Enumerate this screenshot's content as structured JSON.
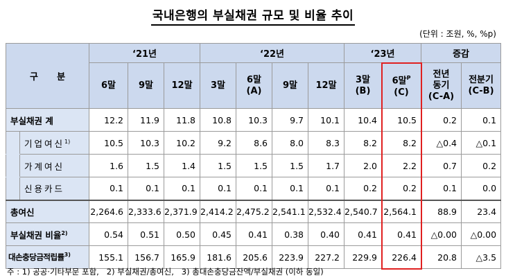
{
  "title": "국내은행의 부실채권 규모 및 비율 추이",
  "unit": "(단위 : 조원, %, %p)",
  "header": {
    "category": "구      분",
    "groups": [
      "‘21년",
      "‘22년",
      "‘23년",
      "증감"
    ],
    "cols": [
      {
        "l1": "6말",
        "l2": ""
      },
      {
        "l1": "9말",
        "l2": ""
      },
      {
        "l1": "12말",
        "l2": ""
      },
      {
        "l1": "3말",
        "l2": ""
      },
      {
        "l1": "6말",
        "l2": "(A)"
      },
      {
        "l1": "9말",
        "l2": ""
      },
      {
        "l1": "12말",
        "l2": ""
      },
      {
        "l1": "3말",
        "l2": "(B)"
      },
      {
        "l1": "6말",
        "sup": "P",
        "l2": "(C)"
      },
      {
        "l1": "전년",
        "l2": "동기",
        "l3": "(C-A)"
      },
      {
        "l1": "전분기",
        "l2": "(C-B)"
      }
    ]
  },
  "rows": [
    {
      "label": "부실채권 계",
      "sup": "",
      "values": [
        "12.2",
        "11.9",
        "11.8",
        "10.8",
        "10.3",
        "9.7",
        "10.1",
        "10.4",
        "10.5",
        "0.2",
        "0.1"
      ]
    },
    {
      "label": "기업여신",
      "sup": "1)",
      "values": [
        "10.5",
        "10.3",
        "10.2",
        "9.2",
        "8.6",
        "8.0",
        "8.3",
        "8.2",
        "8.2",
        "△0.4",
        "△0.1"
      ]
    },
    {
      "label": "가계여신",
      "sup": "",
      "values": [
        "1.6",
        "1.5",
        "1.4",
        "1.5",
        "1.5",
        "1.5",
        "1.7",
        "2.0",
        "2.2",
        "0.7",
        "0.2"
      ]
    },
    {
      "label": "신용카드",
      "sup": "",
      "values": [
        "0.1",
        "0.1",
        "0.1",
        "0.1",
        "0.1",
        "0.1",
        "0.1",
        "0.2",
        "0.2",
        "0.1",
        "0.0"
      ]
    },
    {
      "label": "총여신",
      "sup": "",
      "values": [
        "2,264.6",
        "2,333.6",
        "2,371.9",
        "2,414.2",
        "2,475.2",
        "2,541.1",
        "2,532.4",
        "2,540.7",
        "2,564.1",
        "88.9",
        "23.4"
      ]
    },
    {
      "label": "부실채권 비율",
      "sup": "2)",
      "values": [
        "0.54",
        "0.51",
        "0.50",
        "0.45",
        "0.41",
        "0.38",
        "0.40",
        "0.41",
        "0.41",
        "△0.00",
        "△0.00"
      ]
    },
    {
      "label": "대손충당금적립률",
      "sup": "3)",
      "values": [
        "155.1",
        "156.7",
        "165.9",
        "181.6",
        "205.6",
        "223.9",
        "227.2",
        "229.9",
        "226.4",
        "20.8",
        "△3.5"
      ]
    }
  ],
  "note": "주 : 1) 공공·기타부문 포함,   2) 부실채권/총여신,   3) 총대손충당금잔액/부실채권 (이하 동일)"
}
